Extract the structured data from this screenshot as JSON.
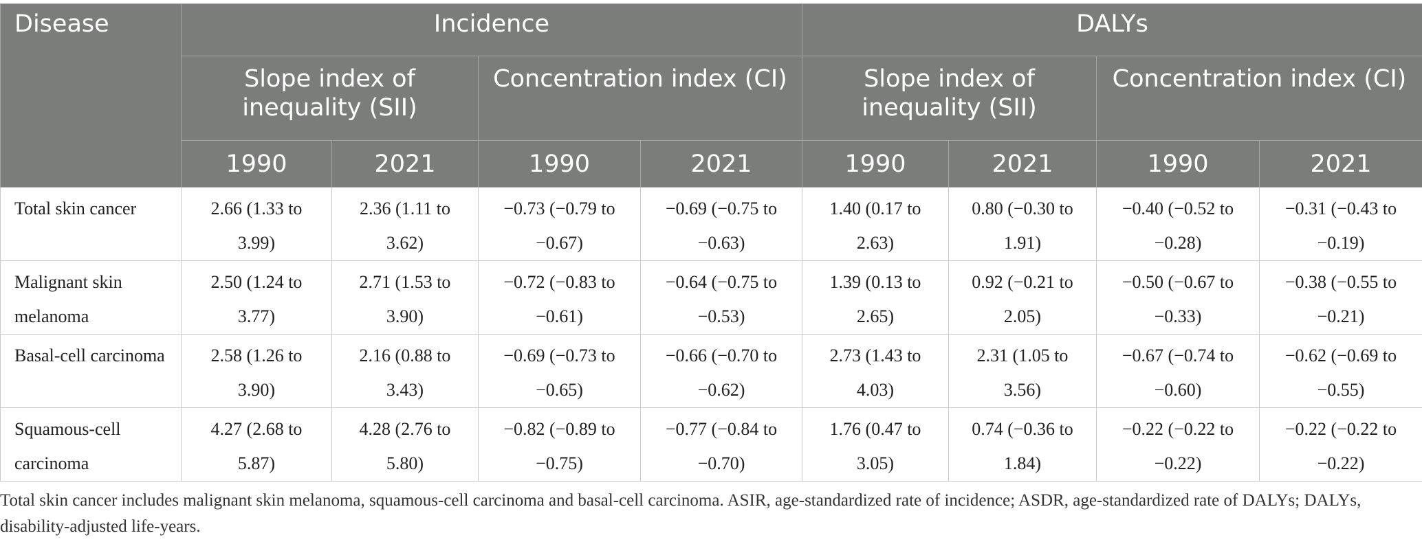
{
  "header": {
    "disease": "Disease",
    "incidence": "Incidence",
    "dalys": "DALYs",
    "sii": "Slope index of inequality (SII)",
    "ci": "Concentration index (CI)",
    "year1990": "1990",
    "year2021": "2021"
  },
  "rows": [
    {
      "disease": "Total skin cancer",
      "inc_sii_1990": "2.66 (1.33 to 3.99)",
      "inc_sii_2021": "2.36 (1.11 to 3.62)",
      "inc_ci_1990": "−0.73 (−0.79 to −0.67)",
      "inc_ci_2021": "−0.69 (−0.75 to −0.63)",
      "daly_sii_1990": "1.40 (0.17 to 2.63)",
      "daly_sii_2021": "0.80 (−0.30 to 1.91)",
      "daly_ci_1990": "−0.40 (−0.52 to −0.28)",
      "daly_ci_2021": "−0.31 (−0.43 to −0.19)"
    },
    {
      "disease": "Malignant skin melanoma",
      "inc_sii_1990": "2.50 (1.24 to 3.77)",
      "inc_sii_2021": "2.71 (1.53 to 3.90)",
      "inc_ci_1990": "−0.72 (−0.83 to −0.61)",
      "inc_ci_2021": "−0.64 (−0.75 to −0.53)",
      "daly_sii_1990": "1.39 (0.13 to 2.65)",
      "daly_sii_2021": "0.92 (−0.21 to 2.05)",
      "daly_ci_1990": "−0.50 (−0.67 to −0.33)",
      "daly_ci_2021": "−0.38 (−0.55 to −0.21)"
    },
    {
      "disease": "Basal-cell carcinoma",
      "inc_sii_1990": "2.58 (1.26 to 3.90)",
      "inc_sii_2021": "2.16 (0.88 to 3.43)",
      "inc_ci_1990": "−0.69 (−0.73 to −0.65)",
      "inc_ci_2021": "−0.66 (−0.70 to −0.62)",
      "daly_sii_1990": "2.73 (1.43 to 4.03)",
      "daly_sii_2021": "2.31 (1.05 to 3.56)",
      "daly_ci_1990": "−0.67 (−0.74 to −0.60)",
      "daly_ci_2021": "−0.62 (−0.69 to −0.55)"
    },
    {
      "disease": "Squamous-cell carcinoma",
      "inc_sii_1990": "4.27 (2.68 to 5.87)",
      "inc_sii_2021": "4.28 (2.76 to 5.80)",
      "inc_ci_1990": "−0.82 (−0.89 to −0.75)",
      "inc_ci_2021": "−0.77 (−0.84 to −0.70)",
      "daly_sii_1990": "1.76 (0.47 to 3.05)",
      "daly_sii_2021": "0.74 (−0.36 to 1.84)",
      "daly_ci_1990": "−0.22 (−0.22 to −0.22)",
      "daly_ci_2021": "−0.22 (−0.22 to −0.22)"
    }
  ],
  "footnote": "Total skin cancer includes malignant skin melanoma, squamous-cell carcinoma and basal-cell carcinoma. ASIR, age-standardized rate of incidence; ASDR, age-standardized rate of DALYs; DALYs, disability-adjusted life-years.",
  "colors": {
    "header_bg": "#7b7d7b",
    "header_text": "#ffffff",
    "body_text": "#222222"
  }
}
